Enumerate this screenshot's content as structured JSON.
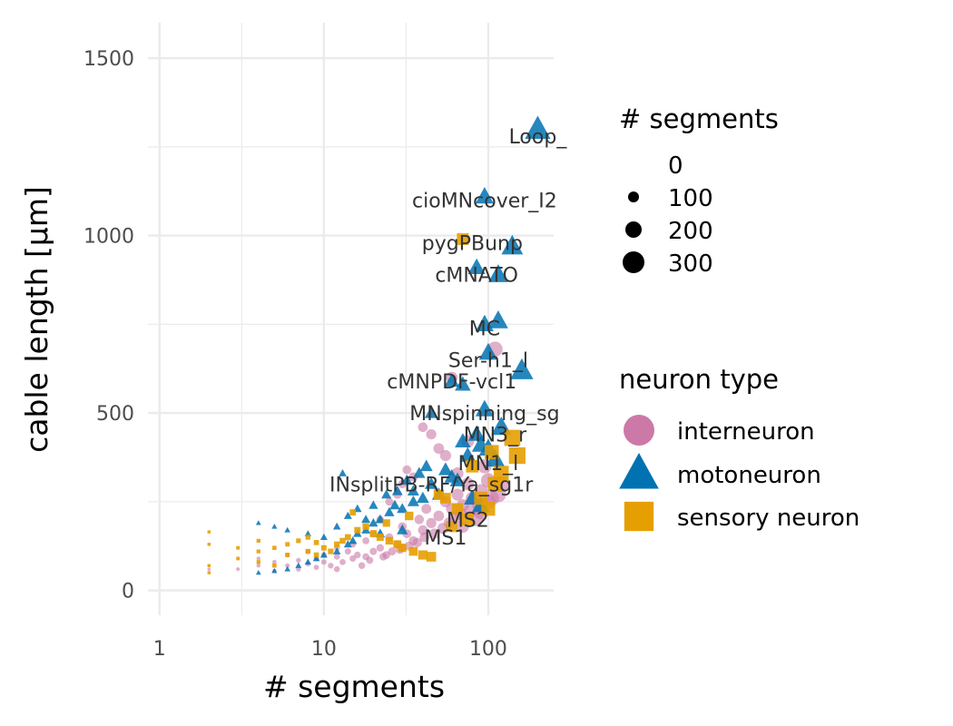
{
  "chart_data": {
    "type": "scatter",
    "xlabel": "# segments",
    "ylabel": "cable length [µm]",
    "x_scale": "log10",
    "xlim": [
      0.85,
      250
    ],
    "ylim": [
      -70,
      1600
    ],
    "x_ticks": [
      1,
      10,
      100
    ],
    "x_tick_labels": [
      "1",
      "10",
      "100"
    ],
    "y_ticks": [
      0,
      500,
      1000,
      1500
    ],
    "y_tick_labels": [
      "0",
      "500",
      "1000",
      "1500"
    ],
    "grid": true,
    "size_legend": {
      "title": "# segments",
      "entries": [
        {
          "label": "0",
          "value": 0
        },
        {
          "label": "100",
          "value": 100
        },
        {
          "label": "200",
          "value": 200
        },
        {
          "label": "300",
          "value": 300
        }
      ]
    },
    "color_legend": {
      "title": "neuron type",
      "placement": "right",
      "entries": [
        {
          "label": "interneuron",
          "shape": "circle",
          "color": "#CC79A7"
        },
        {
          "label": "motoneuron",
          "shape": "triangle",
          "color": "#0072B2"
        },
        {
          "label": "sensory neuron",
          "shape": "square",
          "color": "#E69F00"
        }
      ]
    },
    "series": [
      {
        "name": "interneuron",
        "shape": "circle",
        "color": "#CC79A7",
        "points": [
          [
            2,
            60
          ],
          [
            3,
            60
          ],
          [
            4,
            70
          ],
          [
            4,
            90
          ],
          [
            5,
            80
          ],
          [
            6,
            70
          ],
          [
            6,
            100
          ],
          [
            7,
            85
          ],
          [
            8,
            75
          ],
          [
            8,
            110
          ],
          [
            9,
            90
          ],
          [
            10,
            80
          ],
          [
            10,
            100
          ],
          [
            11,
            70
          ],
          [
            12,
            95
          ],
          [
            12,
            120
          ],
          [
            13,
            80
          ],
          [
            14,
            110
          ],
          [
            15,
            90
          ],
          [
            15,
            130
          ],
          [
            16,
            100
          ],
          [
            18,
            95
          ],
          [
            18,
            140
          ],
          [
            20,
            110
          ],
          [
            20,
            160
          ],
          [
            22,
            120
          ],
          [
            24,
            100
          ],
          [
            25,
            150
          ],
          [
            28,
            130
          ],
          [
            30,
            120
          ],
          [
            30,
            180
          ],
          [
            32,
            160
          ],
          [
            35,
            140
          ],
          [
            38,
            200
          ],
          [
            40,
            170
          ],
          [
            42,
            230
          ],
          [
            45,
            190
          ],
          [
            50,
            210
          ],
          [
            55,
            250
          ],
          [
            60,
            230
          ],
          [
            65,
            270
          ],
          [
            70,
            240
          ],
          [
            75,
            300
          ],
          [
            80,
            260
          ],
          [
            85,
            200
          ],
          [
            90,
            280
          ],
          [
            95,
            350
          ],
          [
            100,
            310
          ],
          [
            110,
            680
          ],
          [
            60,
            600
          ],
          [
            40,
            460
          ],
          [
            45,
            440
          ],
          [
            50,
            400
          ],
          [
            35,
            320
          ],
          [
            30,
            300
          ],
          [
            25,
            250
          ],
          [
            22,
            200
          ],
          [
            28,
            270
          ],
          [
            32,
            340
          ],
          [
            55,
            380
          ],
          [
            65,
            330
          ],
          [
            75,
            420
          ],
          [
            70,
            180
          ],
          [
            90,
            220
          ],
          [
            100,
            250
          ],
          [
            120,
            300
          ],
          [
            17,
            70
          ],
          [
            19,
            85
          ],
          [
            23,
            95
          ],
          [
            26,
            110
          ],
          [
            29,
            115
          ],
          [
            33,
            125
          ],
          [
            37,
            135
          ],
          [
            41,
            150
          ],
          [
            47,
            160
          ],
          [
            53,
            175
          ],
          [
            58,
            190
          ],
          [
            63,
            205
          ],
          [
            68,
            215
          ],
          [
            78,
            225
          ],
          [
            88,
            240
          ],
          [
            105,
            260
          ],
          [
            115,
            270
          ],
          [
            12,
            60
          ],
          [
            9,
            65
          ],
          [
            7,
            60
          ],
          [
            5,
            55
          ]
        ]
      },
      {
        "name": "motoneuron",
        "shape": "triangle",
        "color": "#0072B2",
        "points": [
          [
            200,
            1300
          ],
          [
            95,
            1110
          ],
          [
            140,
            970
          ],
          [
            85,
            910
          ],
          [
            115,
            890
          ],
          [
            95,
            750
          ],
          [
            115,
            760
          ],
          [
            100,
            670
          ],
          [
            160,
            620
          ],
          [
            60,
            590
          ],
          [
            70,
            580
          ],
          [
            95,
            510
          ],
          [
            45,
            500
          ],
          [
            85,
            440
          ],
          [
            120,
            460
          ],
          [
            90,
            410
          ],
          [
            100,
            400
          ],
          [
            75,
            380
          ],
          [
            55,
            340
          ],
          [
            60,
            320
          ],
          [
            65,
            310
          ],
          [
            45,
            300
          ],
          [
            50,
            270
          ],
          [
            40,
            260
          ],
          [
            35,
            250
          ],
          [
            30,
            230
          ],
          [
            25,
            220
          ],
          [
            22,
            200
          ],
          [
            20,
            190
          ],
          [
            18,
            170
          ],
          [
            16,
            160
          ],
          [
            15,
            140
          ],
          [
            14,
            130
          ],
          [
            12,
            110
          ],
          [
            10,
            100
          ],
          [
            9,
            90
          ],
          [
            8,
            80
          ],
          [
            7,
            70
          ],
          [
            6,
            60
          ],
          [
            5,
            55
          ],
          [
            4,
            50
          ],
          [
            4,
            190
          ],
          [
            5,
            180
          ],
          [
            6,
            170
          ],
          [
            8,
            160
          ],
          [
            10,
            150
          ],
          [
            12,
            180
          ],
          [
            14,
            210
          ],
          [
            16,
            230
          ],
          [
            20,
            240
          ],
          [
            24,
            270
          ],
          [
            28,
            280
          ],
          [
            32,
            310
          ],
          [
            38,
            330
          ],
          [
            42,
            350
          ],
          [
            70,
            420
          ],
          [
            110,
            370
          ],
          [
            80,
            260
          ],
          [
            90,
            240
          ],
          [
            35,
            280
          ],
          [
            13,
            330
          ],
          [
            27,
            240
          ],
          [
            18,
            200
          ],
          [
            22,
            160
          ],
          [
            30,
            170
          ]
        ]
      },
      {
        "name": "sensory neuron",
        "shape": "square",
        "color": "#E69F00",
        "points": [
          [
            70,
            990
          ],
          [
            140,
            430
          ],
          [
            105,
            390
          ],
          [
            80,
            350
          ],
          [
            120,
            330
          ],
          [
            90,
            260
          ],
          [
            100,
            230
          ],
          [
            75,
            200
          ],
          [
            15,
            220
          ],
          [
            18,
            180
          ],
          [
            20,
            160
          ],
          [
            22,
            150
          ],
          [
            25,
            140
          ],
          [
            28,
            130
          ],
          [
            30,
            120
          ],
          [
            35,
            110
          ],
          [
            40,
            100
          ],
          [
            45,
            95
          ],
          [
            2,
            165
          ],
          [
            2,
            130
          ],
          [
            2,
            70
          ],
          [
            3,
            90
          ],
          [
            3,
            120
          ],
          [
            4,
            140
          ],
          [
            4,
            110
          ],
          [
            4,
            80
          ],
          [
            5,
            120
          ],
          [
            6,
            100
          ],
          [
            6,
            130
          ],
          [
            7,
            140
          ],
          [
            8,
            150
          ],
          [
            8,
            110
          ],
          [
            9,
            100
          ],
          [
            10,
            120
          ],
          [
            11,
            110
          ],
          [
            12,
            130
          ],
          [
            13,
            140
          ],
          [
            14,
            150
          ],
          [
            16,
            170
          ],
          [
            60,
            180
          ],
          [
            65,
            230
          ],
          [
            150,
            380
          ],
          [
            110,
            300
          ],
          [
            50,
            270
          ],
          [
            55,
            260
          ],
          [
            2,
            50
          ],
          [
            5,
            70
          ],
          [
            9,
            135
          ],
          [
            24,
            190
          ],
          [
            33,
            210
          ]
        ]
      }
    ],
    "annotations": [
      {
        "text": "Loop_",
        "x": 200,
        "y": 1280
      },
      {
        "text": "cioMNcover_I2",
        "x": 95,
        "y": 1100
      },
      {
        "text": "pygPBunp",
        "x": 80,
        "y": 980
      },
      {
        "text": "cMNATO",
        "x": 85,
        "y": 890
      },
      {
        "text": "MC",
        "x": 95,
        "y": 740
      },
      {
        "text": "Ser-h1_l",
        "x": 100,
        "y": 650
      },
      {
        "text": "cMNPDF-vcl1",
        "x": 60,
        "y": 590
      },
      {
        "text": "MNspinning_sg",
        "x": 95,
        "y": 500
      },
      {
        "text": "MN3_r",
        "x": 110,
        "y": 440
      },
      {
        "text": "MN1_l",
        "x": 100,
        "y": 360
      },
      {
        "text": "INsplitPB-RF/Ya_sg1r",
        "x": 45,
        "y": 300
      },
      {
        "text": "MS2",
        "x": 75,
        "y": 200
      },
      {
        "text": "MS1",
        "x": 55,
        "y": 150
      }
    ]
  }
}
